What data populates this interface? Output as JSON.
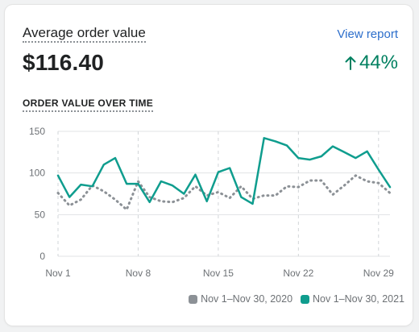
{
  "card": {
    "title": "Average order value",
    "link_label": "View report",
    "value": "$116.40",
    "change": "44%",
    "change_icon": "arrow-up-icon",
    "subtitle": "ORDER VALUE OVER TIME"
  },
  "legend": [
    {
      "label": "Nov 1–Nov 30, 2020",
      "color": "#8c9196"
    },
    {
      "label": "Nov 1–Nov 30, 2021",
      "color": "#0f9d8e"
    }
  ],
  "chart_data": {
    "type": "line",
    "x": [
      "Nov 1",
      "Nov 2",
      "Nov 3",
      "Nov 4",
      "Nov 5",
      "Nov 6",
      "Nov 7",
      "Nov 8",
      "Nov 9",
      "Nov 10",
      "Nov 11",
      "Nov 12",
      "Nov 13",
      "Nov 14",
      "Nov 15",
      "Nov 16",
      "Nov 17",
      "Nov 18",
      "Nov 19",
      "Nov 20",
      "Nov 21",
      "Nov 22",
      "Nov 23",
      "Nov 24",
      "Nov 25",
      "Nov 26",
      "Nov 27",
      "Nov 28",
      "Nov 29",
      "Nov 30"
    ],
    "x_tick_labels": [
      "Nov 1",
      "Nov 8",
      "Nov 15",
      "Nov 22",
      "Nov 29"
    ],
    "y_ticks": [
      0,
      50,
      100,
      150
    ],
    "ylim": [
      0,
      150
    ],
    "grid": true,
    "series": [
      {
        "name": "Nov 1–Nov 30, 2020",
        "color": "#8c9196",
        "style": "dotted",
        "values": [
          76,
          61,
          68,
          85,
          78,
          68,
          56,
          90,
          71,
          66,
          65,
          70,
          84,
          73,
          77,
          70,
          84,
          69,
          73,
          73,
          84,
          83,
          91,
          91,
          74,
          85,
          97,
          90,
          88,
          76
        ]
      },
      {
        "name": "Nov 1–Nov 30, 2021",
        "color": "#0f9d8e",
        "style": "solid",
        "values": [
          97,
          71,
          86,
          84,
          110,
          118,
          87,
          87,
          65,
          90,
          85,
          75,
          98,
          66,
          101,
          106,
          71,
          63,
          142,
          138,
          133,
          118,
          116,
          120,
          132,
          125,
          118,
          126,
          104,
          83
        ]
      }
    ]
  }
}
